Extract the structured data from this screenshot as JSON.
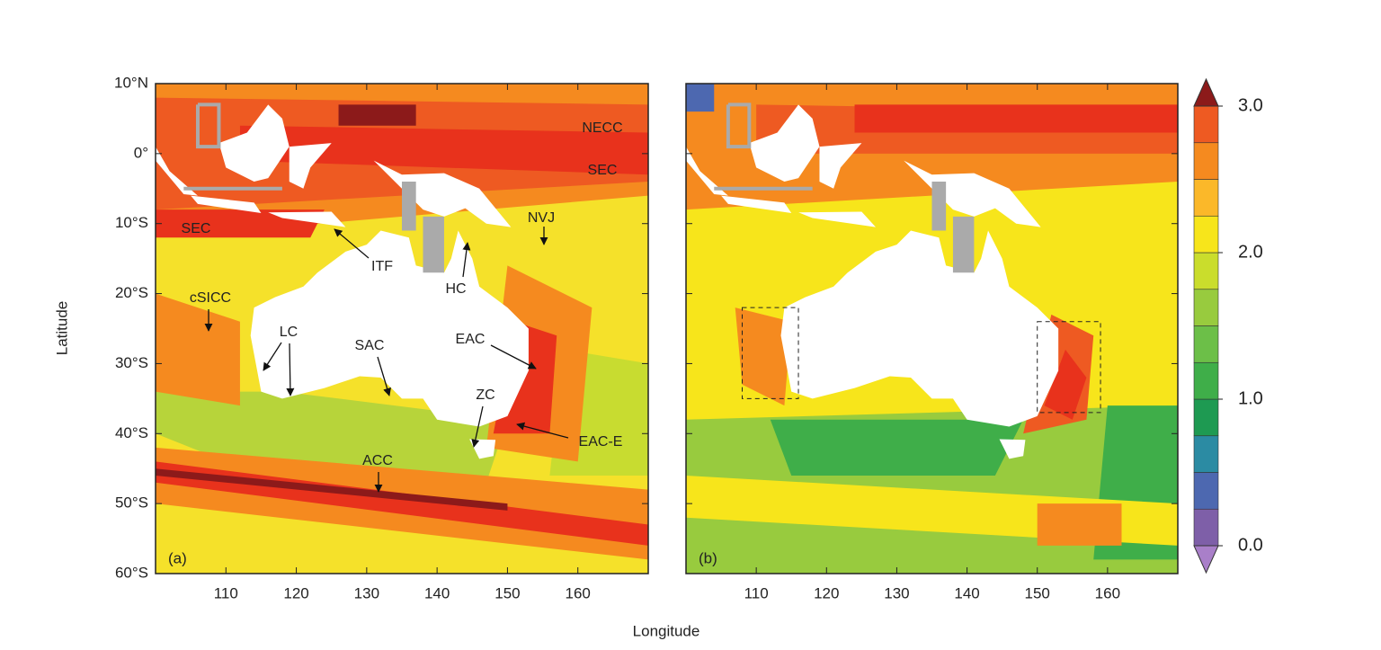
{
  "x_label": "Longitude",
  "y_label": "Latitude",
  "xlim": [
    100,
    170
  ],
  "ylim": [
    -60,
    10
  ],
  "xticks": [
    110,
    120,
    130,
    140,
    150,
    160
  ],
  "yticks": [
    {
      "value": 10,
      "label": "10°N"
    },
    {
      "value": 0,
      "label": "0°"
    },
    {
      "value": -10,
      "label": "10°S"
    },
    {
      "value": -20,
      "label": "20°S"
    },
    {
      "value": -30,
      "label": "30°S"
    },
    {
      "value": -40,
      "label": "40°S"
    },
    {
      "value": -50,
      "label": "50°S"
    },
    {
      "value": -60,
      "label": "60°S"
    }
  ],
  "panels": [
    {
      "label": "(a)",
      "annotations": [
        "NECC",
        "SEC",
        "SEC",
        "NVJ",
        "ITF",
        "HC",
        "cSICC",
        "LC",
        "SAC",
        "EAC",
        "ZC",
        "EAC-E",
        "ACC"
      ]
    },
    {
      "label": "(b)"
    }
  ],
  "colorbar": {
    "lim": [
      0,
      3
    ],
    "ticks": [
      {
        "value": 0,
        "label": "0.0"
      },
      {
        "value": 1,
        "label": "1.0"
      },
      {
        "value": 2,
        "label": "2.0"
      },
      {
        "value": 3,
        "label": "3.0"
      }
    ],
    "colors": [
      "#7e5fa8",
      "#4d68b0",
      "#2b8ba3",
      "#1e9a52",
      "#3fae49",
      "#6cbf48",
      "#98cb3e",
      "#cadd2c",
      "#f7e51b",
      "#fbb829",
      "#f58a1f",
      "#ee5a22"
    ],
    "under_color": "#a97fc9",
    "over_color": "#8c1a1a"
  }
}
